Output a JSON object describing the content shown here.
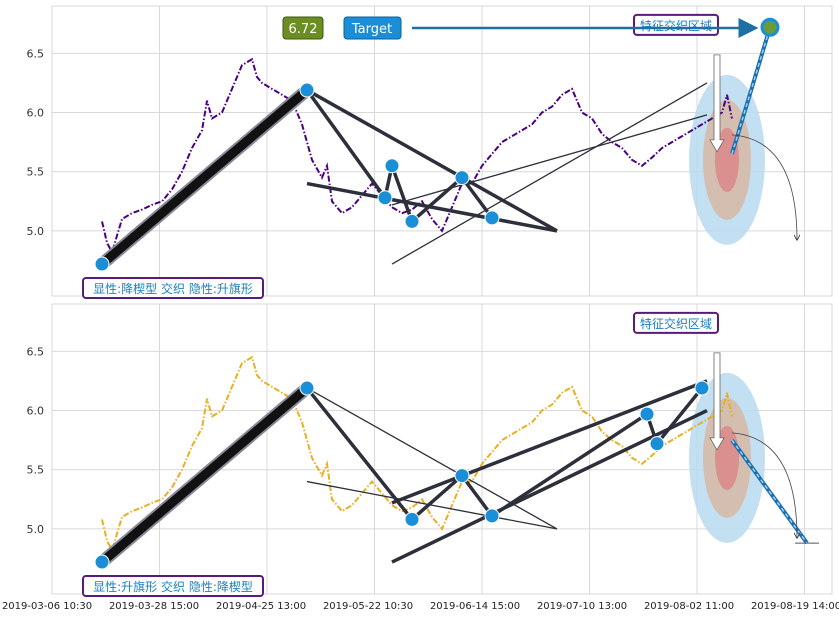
{
  "chart_data": [
    {
      "type": "line",
      "title": "",
      "xlabel": "",
      "ylabel": "",
      "ylim": [
        4.45,
        6.9
      ],
      "yticks": [
        "5.0",
        "5.5",
        "6.0",
        "6.5"
      ],
      "grid": true,
      "series": [
        {
          "color": "#4b0082",
          "style": "dash-dot",
          "x": [
            0,
            5,
            10,
            20,
            30,
            40,
            50,
            60,
            70,
            80,
            90,
            100,
            105,
            110,
            120,
            130,
            140,
            150,
            155,
            160,
            170,
            180,
            190,
            200,
            210,
            220,
            225,
            230,
            240,
            250,
            260,
            270,
            280,
            290,
            300,
            310,
            320,
            330,
            340,
            350,
            360,
            370,
            380,
            390,
            400,
            410,
            420,
            430,
            440,
            450,
            460,
            470,
            480,
            490,
            500,
            510,
            520,
            530,
            540,
            550,
            560,
            570,
            580,
            590,
            600,
            610,
            620,
            625,
            630
          ],
          "y": [
            5.08,
            4.9,
            4.82,
            5.1,
            5.15,
            5.18,
            5.22,
            5.25,
            5.35,
            5.5,
            5.7,
            5.85,
            6.1,
            5.95,
            6.0,
            6.2,
            6.4,
            6.45,
            6.3,
            6.25,
            6.2,
            6.15,
            6.1,
            5.9,
            5.6,
            5.45,
            5.55,
            5.25,
            5.15,
            5.2,
            5.3,
            5.4,
            5.3,
            5.2,
            5.15,
            5.18,
            5.25,
            5.1,
            5.0,
            5.2,
            5.4,
            5.4,
            5.55,
            5.65,
            5.75,
            5.8,
            5.85,
            5.9,
            6.0,
            6.05,
            6.15,
            6.2,
            6.0,
            5.95,
            5.82,
            5.75,
            5.7,
            5.6,
            5.55,
            5.62,
            5.7,
            5.75,
            5.8,
            5.85,
            5.9,
            5.95,
            6.0,
            6.15,
            5.95
          ]
        }
      ],
      "pattern_lines": [
        {
          "x": [
            0,
            205
          ],
          "y": [
            4.72,
            6.19
          ],
          "width": "thick"
        },
        {
          "x": [
            205,
            283,
            290,
            310,
            360,
            390
          ],
          "y": [
            6.19,
            5.28,
            5.55,
            5.08,
            5.45,
            5.11
          ],
          "width": "medium"
        },
        {
          "x": [
            205,
            455
          ],
          "y": [
            6.19,
            5.0
          ],
          "width": "medium"
        },
        {
          "x": [
            205,
            455
          ],
          "y": [
            5.4,
            5.0
          ],
          "width": "medium"
        },
        {
          "x": [
            290,
            605
          ],
          "y": [
            4.72,
            6.25
          ],
          "width": "thin"
        },
        {
          "x": [
            290,
            605
          ],
          "y": [
            5.22,
            5.98
          ],
          "width": "thin"
        }
      ],
      "points": [
        {
          "x": 0,
          "y": 4.72
        },
        {
          "x": 205,
          "y": 6.19
        },
        {
          "x": 283,
          "y": 5.28
        },
        {
          "x": 290,
          "y": 5.55
        },
        {
          "x": 310,
          "y": 5.08
        },
        {
          "x": 360,
          "y": 5.45
        },
        {
          "x": 390,
          "y": 5.11
        }
      ],
      "target_arrow": {
        "from": [
          630,
          5.65
        ],
        "to": [
          668,
          6.72
        ]
      },
      "end_point": {
        "x": 668,
        "y": 6.72
      },
      "badges": {
        "value": "6.72",
        "target": "Target"
      },
      "zone_label": "特征交织区域",
      "pattern_label": "显性:降楔型 交织 隐性:升旗形"
    },
    {
      "type": "line",
      "title": "",
      "xlabel": "",
      "ylabel": "",
      "ylim": [
        4.45,
        6.9
      ],
      "yticks": [
        "5.0",
        "5.5",
        "6.0",
        "6.5"
      ],
      "grid": true,
      "xticks": [
        "2019-03-06 10:30",
        "2019-03-28 15:00",
        "2019-04-25 13:00",
        "2019-05-22 10:30",
        "2019-06-14 15:00",
        "2019-07-10 13:00",
        "2019-08-02 11:00",
        "2019-08-19 14:00"
      ],
      "series": [
        {
          "color": "#e8b020",
          "style": "dash-dot",
          "x": [
            0,
            5,
            10,
            20,
            30,
            40,
            50,
            60,
            70,
            80,
            90,
            100,
            105,
            110,
            120,
            130,
            140,
            150,
            155,
            160,
            170,
            180,
            190,
            200,
            210,
            220,
            225,
            230,
            240,
            250,
            260,
            270,
            280,
            290,
            300,
            310,
            320,
            330,
            340,
            350,
            360,
            370,
            380,
            390,
            400,
            410,
            420,
            430,
            440,
            450,
            460,
            470,
            480,
            490,
            500,
            510,
            520,
            530,
            540,
            550,
            560,
            570,
            580,
            590,
            600,
            610,
            620,
            625,
            630
          ],
          "y": [
            5.08,
            4.9,
            4.82,
            5.1,
            5.15,
            5.18,
            5.22,
            5.25,
            5.35,
            5.5,
            5.7,
            5.85,
            6.1,
            5.95,
            6.0,
            6.2,
            6.4,
            6.45,
            6.3,
            6.25,
            6.2,
            6.15,
            6.1,
            5.9,
            5.6,
            5.45,
            5.55,
            5.25,
            5.15,
            5.2,
            5.3,
            5.4,
            5.3,
            5.2,
            5.15,
            5.18,
            5.25,
            5.1,
            5.0,
            5.2,
            5.4,
            5.4,
            5.55,
            5.65,
            5.75,
            5.8,
            5.85,
            5.9,
            6.0,
            6.05,
            6.15,
            6.2,
            6.0,
            5.95,
            5.82,
            5.75,
            5.7,
            5.6,
            5.55,
            5.62,
            5.7,
            5.75,
            5.8,
            5.85,
            5.9,
            5.95,
            6.0,
            6.15,
            5.95
          ]
        }
      ],
      "pattern_lines": [
        {
          "x": [
            0,
            205
          ],
          "y": [
            4.72,
            6.19
          ],
          "width": "thick"
        },
        {
          "x": [
            205,
            310,
            360,
            390,
            545,
            555,
            600
          ],
          "y": [
            6.19,
            5.08,
            5.45,
            5.11,
            5.97,
            5.72,
            6.19
          ],
          "width": "medium"
        },
        {
          "x": [
            205,
            455
          ],
          "y": [
            5.4,
            5.0
          ],
          "width": "thin"
        },
        {
          "x": [
            205,
            455
          ],
          "y": [
            6.19,
            5.0
          ],
          "width": "thin"
        },
        {
          "x": [
            290,
            605
          ],
          "y": [
            4.72,
            6.0
          ],
          "width": "medium"
        },
        {
          "x": [
            290,
            605
          ],
          "y": [
            5.22,
            6.25
          ],
          "width": "medium"
        }
      ],
      "points": [
        {
          "x": 0,
          "y": 4.72
        },
        {
          "x": 205,
          "y": 6.19
        },
        {
          "x": 310,
          "y": 5.08
        },
        {
          "x": 360,
          "y": 5.45
        },
        {
          "x": 390,
          "y": 5.11
        },
        {
          "x": 545,
          "y": 5.97
        },
        {
          "x": 555,
          "y": 5.72
        },
        {
          "x": 600,
          "y": 6.19
        }
      ],
      "target_arrow": {
        "from": [
          630,
          5.75
        ],
        "to": [
          705,
          4.88
        ]
      },
      "end_point": {
        "x": 705,
        "y": 4.88
      },
      "zone_label": "特征交织区域",
      "pattern_label": "显性:升旗形 交织 隐性:降楔型"
    }
  ]
}
